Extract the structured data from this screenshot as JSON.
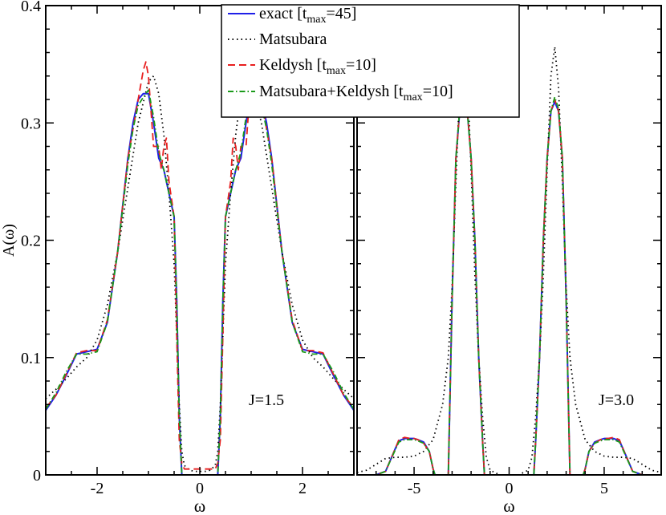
{
  "chart_data": [
    {
      "type": "line",
      "ylabel": "A(ω)",
      "xlabel": "ω",
      "annotation": "J=1.5",
      "xlim": [
        -3,
        3
      ],
      "ylim": [
        0,
        0.4
      ],
      "xticks": [
        -2,
        0,
        2
      ],
      "xtick_labels": [
        "-2",
        "0",
        "2"
      ],
      "yticks": [
        0,
        0.1,
        0.2,
        0.3,
        0.4
      ],
      "ytick_labels": [
        "0",
        "0.1",
        "0.2",
        "0.3",
        "0.4"
      ],
      "series": [
        {
          "name": "exact [tmax=45]",
          "color": "#1f1fe8",
          "style": "solid",
          "x": [
            -3.0,
            -2.8,
            -2.6,
            -2.4,
            -2.2,
            -2.0,
            -1.8,
            -1.6,
            -1.4,
            -1.3,
            -1.2,
            -1.1,
            -1.0,
            -0.9,
            -0.8,
            -0.7,
            -0.6,
            -0.5,
            -0.45,
            -0.4,
            -0.35,
            -0.3,
            0.3,
            0.35,
            0.4,
            0.45,
            0.5,
            0.6,
            0.7,
            0.8,
            0.9,
            1.0,
            1.1,
            1.2,
            1.3,
            1.4,
            1.6,
            1.8,
            2.0,
            2.2,
            2.4,
            2.6,
            2.8,
            3.0
          ],
          "y": [
            0.055,
            0.068,
            0.085,
            0.103,
            0.105,
            0.107,
            0.13,
            0.19,
            0.27,
            0.3,
            0.32,
            0.325,
            0.325,
            0.3,
            0.27,
            0.26,
            0.24,
            0.22,
            0.15,
            0.05,
            0.0,
            0.0,
            0.0,
            0.0,
            0.05,
            0.15,
            0.22,
            0.24,
            0.26,
            0.27,
            0.3,
            0.325,
            0.325,
            0.32,
            0.3,
            0.27,
            0.19,
            0.13,
            0.107,
            0.105,
            0.103,
            0.085,
            0.068,
            0.055
          ]
        },
        {
          "name": "Matsubara",
          "color": "#000000",
          "style": "dotted",
          "x": [
            -3.0,
            -2.8,
            -2.6,
            -2.4,
            -2.2,
            -2.0,
            -1.8,
            -1.6,
            -1.4,
            -1.2,
            -1.0,
            -0.9,
            -0.8,
            -0.7,
            -0.6,
            -0.5,
            -0.45,
            -0.4,
            -0.35,
            -0.3,
            -0.2,
            -0.1,
            0.0,
            0.1,
            0.2,
            0.3,
            0.35,
            0.4,
            0.45,
            0.5,
            0.6,
            0.7,
            0.8,
            0.9,
            1.0,
            1.2,
            1.4,
            1.6,
            1.8,
            2.0,
            2.2,
            2.4,
            2.6,
            2.8,
            3.0
          ],
          "y": [
            0.065,
            0.073,
            0.082,
            0.092,
            0.1,
            0.115,
            0.145,
            0.19,
            0.245,
            0.3,
            0.335,
            0.34,
            0.325,
            0.29,
            0.24,
            0.18,
            0.12,
            0.06,
            0.02,
            0.008,
            0.004,
            0.003,
            0.003,
            0.003,
            0.004,
            0.008,
            0.02,
            0.06,
            0.12,
            0.18,
            0.24,
            0.29,
            0.325,
            0.34,
            0.335,
            0.3,
            0.245,
            0.19,
            0.145,
            0.115,
            0.1,
            0.092,
            0.082,
            0.073,
            0.065
          ]
        },
        {
          "name": "Keldysh [tmax=10]",
          "color": "#e81f1f",
          "style": "dashed",
          "x": [
            -3.0,
            -2.8,
            -2.6,
            -2.4,
            -2.2,
            -2.0,
            -1.8,
            -1.6,
            -1.4,
            -1.2,
            -1.1,
            -1.05,
            -1.0,
            -0.95,
            -0.9,
            -0.8,
            -0.75,
            -0.7,
            -0.65,
            -0.6,
            -0.5,
            -0.45,
            -0.4,
            -0.35,
            -0.3,
            -0.2,
            -0.1,
            0.0,
            0.1,
            0.2,
            0.3,
            0.35,
            0.4,
            0.45,
            0.5,
            0.6,
            0.65,
            0.7,
            0.75,
            0.8,
            0.9,
            0.95,
            1.0,
            1.05,
            1.1,
            1.2,
            1.4,
            1.6,
            1.8,
            2.0,
            2.2,
            2.4,
            2.6,
            2.8,
            3.0
          ],
          "y": [
            0.057,
            0.068,
            0.086,
            0.104,
            0.106,
            0.106,
            0.132,
            0.19,
            0.27,
            0.32,
            0.345,
            0.352,
            0.34,
            0.31,
            0.28,
            0.28,
            0.26,
            0.28,
            0.287,
            0.25,
            0.22,
            0.12,
            0.03,
            0.01,
            0.005,
            0.005,
            0.005,
            0.005,
            0.005,
            0.005,
            0.005,
            0.01,
            0.03,
            0.12,
            0.22,
            0.25,
            0.287,
            0.28,
            0.26,
            0.28,
            0.28,
            0.31,
            0.34,
            0.352,
            0.345,
            0.32,
            0.27,
            0.19,
            0.132,
            0.106,
            0.106,
            0.104,
            0.086,
            0.068,
            0.057
          ]
        },
        {
          "name": "Matsubara+Keldysh [tmax=10]",
          "color": "#1a9a1a",
          "style": "dashdot",
          "x": [
            -3.0,
            -2.8,
            -2.6,
            -2.4,
            -2.2,
            -2.0,
            -1.8,
            -1.6,
            -1.4,
            -1.3,
            -1.2,
            -1.1,
            -1.0,
            -0.9,
            -0.8,
            -0.7,
            -0.6,
            -0.5,
            -0.45,
            -0.4,
            -0.35,
            -0.3,
            0.3,
            0.35,
            0.4,
            0.45,
            0.5,
            0.6,
            0.7,
            0.8,
            0.9,
            1.0,
            1.1,
            1.2,
            1.3,
            1.4,
            1.6,
            1.8,
            2.0,
            2.2,
            2.4,
            2.6,
            2.8,
            3.0
          ],
          "y": [
            0.056,
            0.07,
            0.088,
            0.103,
            0.103,
            0.105,
            0.13,
            0.19,
            0.265,
            0.295,
            0.315,
            0.322,
            0.328,
            0.305,
            0.275,
            0.26,
            0.24,
            0.22,
            0.15,
            0.05,
            0.0,
            0.0,
            0.0,
            0.0,
            0.05,
            0.15,
            0.22,
            0.24,
            0.26,
            0.275,
            0.305,
            0.328,
            0.322,
            0.315,
            0.295,
            0.265,
            0.19,
            0.13,
            0.105,
            0.103,
            0.103,
            0.088,
            0.07,
            0.056
          ]
        }
      ]
    },
    {
      "type": "line",
      "xlabel": "ω",
      "annotation": "J=3.0",
      "xlim": [
        -8,
        8
      ],
      "ylim": [
        0,
        0.4
      ],
      "xticks": [
        -5,
        0,
        5
      ],
      "xtick_labels": [
        "-5",
        "0",
        "5"
      ],
      "series": [
        {
          "name": "exact [tmax=45]",
          "color": "#1f1fe8",
          "style": "solid",
          "x": [
            -8.0,
            -7.5,
            -7.0,
            -6.5,
            -6.0,
            -5.8,
            -5.5,
            -5.2,
            -5.0,
            -4.8,
            -4.5,
            -4.2,
            -4.0,
            -3.9,
            -3.5,
            -3.2,
            -3.0,
            -2.8,
            -2.6,
            -2.4,
            -2.2,
            -2.0,
            -1.8,
            -1.6,
            -1.4,
            -1.3,
            -1.2,
            1.2,
            1.3,
            1.4,
            1.6,
            1.8,
            2.0,
            2.2,
            2.4,
            2.6,
            2.8,
            3.0,
            3.2,
            3.5,
            3.9,
            4.0,
            4.2,
            4.5,
            4.8,
            5.0,
            5.2,
            5.5,
            5.8,
            6.0,
            6.5,
            7.0,
            7.5,
            8.0
          ],
          "y": [
            0.0,
            0.0,
            0.0,
            0.003,
            0.022,
            0.029,
            0.031,
            0.031,
            0.031,
            0.03,
            0.028,
            0.02,
            0.005,
            0.0,
            0.0,
            0.0,
            0.15,
            0.27,
            0.31,
            0.318,
            0.31,
            0.27,
            0.2,
            0.1,
            0.03,
            0.0,
            0.0,
            0.0,
            0.0,
            0.03,
            0.1,
            0.2,
            0.27,
            0.31,
            0.318,
            0.31,
            0.27,
            0.15,
            0.0,
            0.0,
            0.0,
            0.005,
            0.02,
            0.028,
            0.03,
            0.031,
            0.031,
            0.031,
            0.029,
            0.022,
            0.003,
            0.0,
            0.0,
            0.0
          ]
        },
        {
          "name": "Matsubara",
          "color": "#000000",
          "style": "dotted",
          "x": [
            -8.0,
            -7.5,
            -7.0,
            -6.5,
            -6.0,
            -5.5,
            -5.0,
            -4.5,
            -4.0,
            -3.5,
            -3.2,
            -3.0,
            -2.8,
            -2.6,
            -2.4,
            -2.2,
            -2.0,
            -1.8,
            -1.6,
            -1.4,
            -1.2,
            -1.0,
            -0.5,
            0.0,
            0.5,
            1.0,
            1.2,
            1.4,
            1.6,
            1.8,
            2.0,
            2.2,
            2.4,
            2.6,
            2.8,
            3.0,
            3.2,
            3.5,
            4.0,
            4.5,
            5.0,
            5.5,
            6.0,
            6.5,
            7.0,
            7.5,
            8.0
          ],
          "y": [
            0.002,
            0.004,
            0.009,
            0.014,
            0.015,
            0.015,
            0.016,
            0.02,
            0.03,
            0.06,
            0.1,
            0.16,
            0.25,
            0.33,
            0.365,
            0.34,
            0.26,
            0.17,
            0.1,
            0.05,
            0.015,
            0.004,
            0.0,
            0.0,
            0.0,
            0.004,
            0.015,
            0.05,
            0.1,
            0.17,
            0.26,
            0.34,
            0.365,
            0.33,
            0.25,
            0.16,
            0.1,
            0.06,
            0.03,
            0.02,
            0.016,
            0.015,
            0.015,
            0.014,
            0.009,
            0.004,
            0.002
          ]
        },
        {
          "name": "Keldysh [tmax=10]",
          "color": "#e81f1f",
          "style": "dashed",
          "x": [
            -8.0,
            -7.5,
            -7.0,
            -6.5,
            -6.0,
            -5.8,
            -5.5,
            -5.2,
            -5.0,
            -4.8,
            -4.5,
            -4.2,
            -4.0,
            -3.9,
            -3.5,
            -3.2,
            -3.0,
            -2.8,
            -2.6,
            -2.4,
            -2.2,
            -2.0,
            -1.8,
            -1.6,
            -1.4,
            -1.3,
            -1.2,
            1.2,
            1.3,
            1.4,
            1.6,
            1.8,
            2.0,
            2.2,
            2.4,
            2.6,
            2.8,
            3.0,
            3.2,
            3.5,
            3.9,
            4.0,
            4.2,
            4.5,
            4.8,
            5.0,
            5.2,
            5.5,
            5.8,
            6.0,
            6.5,
            7.0,
            7.5,
            8.0
          ],
          "y": [
            0.0,
            0.0,
            0.0,
            0.003,
            0.022,
            0.03,
            0.032,
            0.031,
            0.031,
            0.03,
            0.027,
            0.02,
            0.005,
            0.0,
            0.0,
            0.0,
            0.15,
            0.27,
            0.31,
            0.32,
            0.31,
            0.27,
            0.2,
            0.1,
            0.03,
            0.0,
            0.0,
            0.0,
            0.0,
            0.03,
            0.1,
            0.2,
            0.27,
            0.31,
            0.32,
            0.31,
            0.27,
            0.15,
            0.0,
            0.0,
            0.0,
            0.005,
            0.02,
            0.027,
            0.03,
            0.031,
            0.031,
            0.032,
            0.03,
            0.022,
            0.003,
            0.0,
            0.0,
            0.0
          ]
        },
        {
          "name": "Matsubara+Keldysh [tmax=10]",
          "color": "#1a9a1a",
          "style": "dashdot",
          "x": [
            -8.0,
            -7.5,
            -7.0,
            -6.5,
            -6.0,
            -5.8,
            -5.5,
            -5.2,
            -5.0,
            -4.8,
            -4.5,
            -4.2,
            -4.0,
            -3.9,
            -3.5,
            -3.2,
            -3.0,
            -2.8,
            -2.6,
            -2.4,
            -2.2,
            -2.0,
            -1.8,
            -1.6,
            -1.4,
            -1.3,
            -1.2,
            1.2,
            1.3,
            1.4,
            1.6,
            1.8,
            2.0,
            2.2,
            2.4,
            2.6,
            2.8,
            3.0,
            3.2,
            3.5,
            3.9,
            4.0,
            4.2,
            4.5,
            4.8,
            5.0,
            5.2,
            5.5,
            5.8,
            6.0,
            6.5,
            7.0,
            7.5,
            8.0
          ],
          "y": [
            0.0,
            0.0,
            0.0,
            0.003,
            0.021,
            0.028,
            0.03,
            0.03,
            0.03,
            0.029,
            0.027,
            0.02,
            0.005,
            0.0,
            0.0,
            0.0,
            0.15,
            0.27,
            0.312,
            0.322,
            0.31,
            0.27,
            0.2,
            0.1,
            0.03,
            0.0,
            0.0,
            0.0,
            0.0,
            0.03,
            0.1,
            0.2,
            0.27,
            0.31,
            0.322,
            0.312,
            0.27,
            0.15,
            0.0,
            0.0,
            0.0,
            0.005,
            0.02,
            0.027,
            0.029,
            0.03,
            0.03,
            0.03,
            0.028,
            0.021,
            0.003,
            0.0,
            0.0,
            0.0
          ]
        }
      ]
    }
  ]
}
